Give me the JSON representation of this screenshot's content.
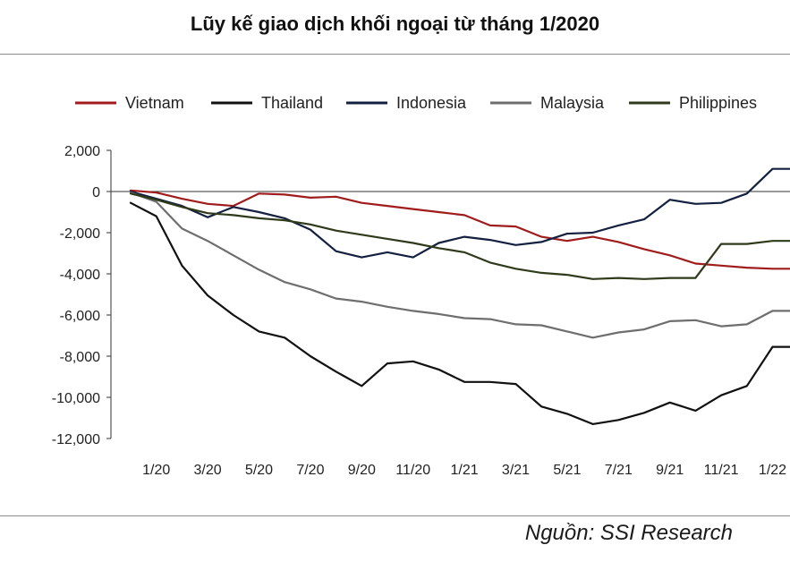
{
  "title": "Lũy kế giao dịch khối ngoại từ tháng 1/2020",
  "source": "Nguồn: SSI Research",
  "chart_data": {
    "type": "line",
    "title": "Lũy kế giao dịch khối ngoại từ tháng 1/2020",
    "xlabel": "",
    "ylabel": "",
    "ylim": [
      -12000,
      2000
    ],
    "yticks": [
      "2,000",
      "0",
      "-2,000",
      "-4,000",
      "-6,000",
      "-8,000",
      "-10,000",
      "-12,000"
    ],
    "xtick_labels": [
      "1/20",
      "3/20",
      "5/20",
      "7/20",
      "9/20",
      "11/20",
      "1/21",
      "3/21",
      "5/21",
      "7/21",
      "9/21",
      "11/21",
      "1/22"
    ],
    "grid": false,
    "legend_position": "top",
    "x": [
      "12/19",
      "1/20",
      "2/20",
      "3/20",
      "4/20",
      "5/20",
      "6/20",
      "7/20",
      "8/20",
      "9/20",
      "10/20",
      "11/20",
      "12/20",
      "1/21",
      "2/21",
      "3/21",
      "4/21",
      "5/21",
      "6/21",
      "7/21",
      "8/21",
      "9/21",
      "10/21",
      "11/21",
      "12/21",
      "1/22",
      "2/22"
    ],
    "series": [
      {
        "name": "Vietnam",
        "color": "#a01c1c",
        "values": [
          50,
          -50,
          -350,
          -600,
          -700,
          -100,
          -150,
          -300,
          -250,
          -550,
          -700,
          -850,
          -1000,
          -1150,
          -1650,
          -1700,
          -2200,
          -2400,
          -2200,
          -2450,
          -2800,
          -3100,
          -3500,
          -3600,
          -3700,
          -3750,
          -3750
        ]
      },
      {
        "name": "Thailand",
        "color": "#111111",
        "values": [
          -550,
          -1200,
          -3600,
          -5050,
          -6000,
          -6800,
          -7100,
          -8000,
          -8750,
          -9450,
          -8350,
          -8250,
          -8650,
          -9250,
          -9250,
          -9350,
          -10450,
          -10800,
          -11300,
          -11100,
          -10750,
          -10250,
          -10650,
          -9900,
          -9450,
          -7550,
          -7550
        ]
      },
      {
        "name": "Indonesia",
        "color": "#14203f",
        "values": [
          0,
          -350,
          -700,
          -1250,
          -750,
          -1000,
          -1300,
          -1850,
          -2900,
          -3200,
          -2950,
          -3200,
          -2500,
          -2200,
          -2350,
          -2600,
          -2450,
          -2050,
          -2000,
          -1650,
          -1350,
          -400,
          -600,
          -550,
          -100,
          1100,
          1100
        ]
      },
      {
        "name": "Malaysia",
        "color": "#6e6e6e",
        "values": [
          -50,
          -500,
          -1800,
          -2400,
          -3100,
          -3800,
          -4400,
          -4750,
          -5200,
          -5350,
          -5600,
          -5800,
          -5950,
          -6150,
          -6200,
          -6450,
          -6500,
          -6800,
          -7100,
          -6850,
          -6700,
          -6300,
          -6250,
          -6550,
          -6450,
          -5800,
          -5800
        ]
      },
      {
        "name": "Philippines",
        "color": "#2f3a1a",
        "values": [
          -100,
          -400,
          -750,
          -1050,
          -1150,
          -1300,
          -1400,
          -1600,
          -1900,
          -2100,
          -2300,
          -2500,
          -2750,
          -2950,
          -3450,
          -3750,
          -3950,
          -4050,
          -4250,
          -4200,
          -4250,
          -4200,
          -4200,
          -2550,
          -2550,
          -2400,
          -2400
        ]
      }
    ]
  }
}
